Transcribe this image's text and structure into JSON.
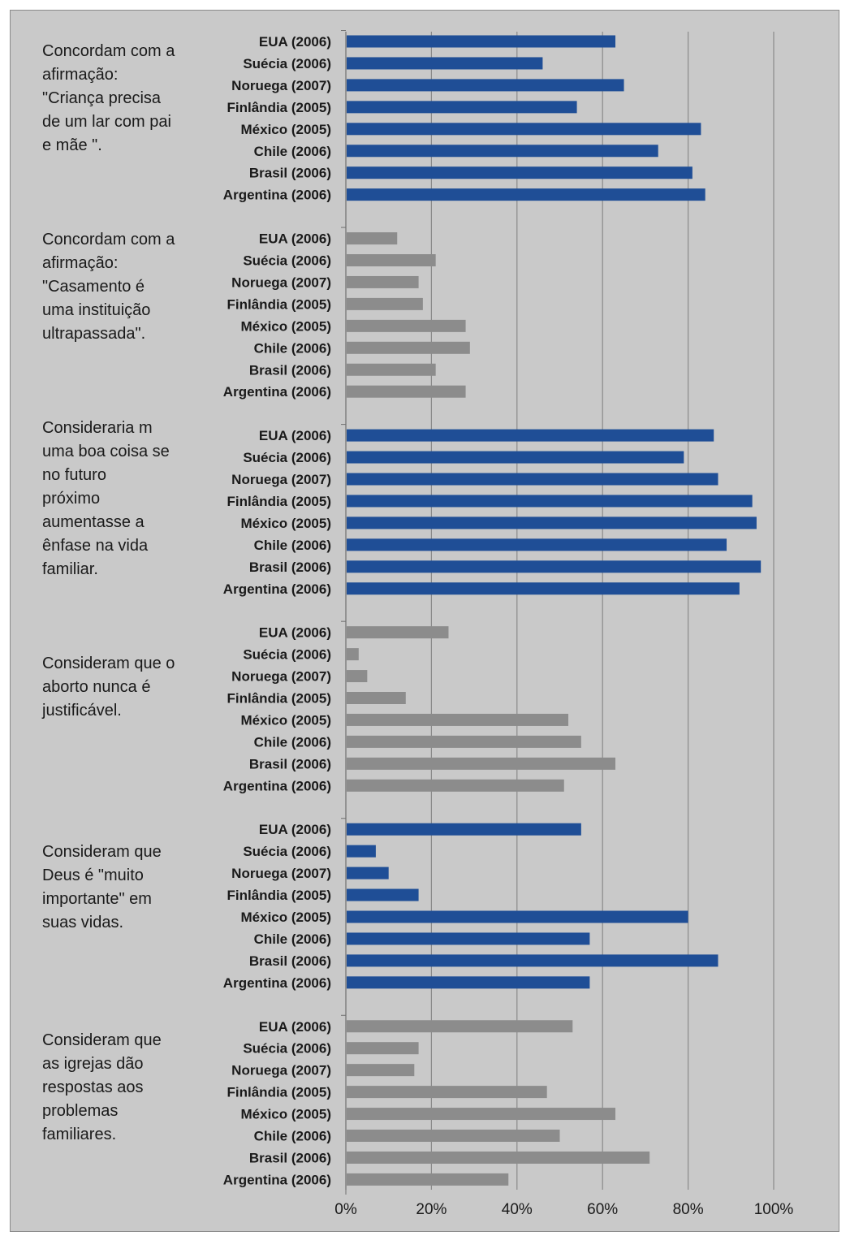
{
  "chart_data": {
    "type": "bar",
    "orientation": "horizontal",
    "categories": [
      "EUA (2006)",
      "Suécia (2006)",
      "Noruega (2007)",
      "Finlândia (2005)",
      "México (2005)",
      "Chile (2006)",
      "Brasil (2006)",
      "Argentina (2006)"
    ],
    "groups": [
      {
        "label": "Concordam com a\nafirmação:\n\"Criança precisa\nde um lar com pai\ne mãe \".",
        "color": "#1f4e96",
        "values": [
          63,
          46,
          65,
          54,
          83,
          73,
          81,
          84
        ]
      },
      {
        "label": "Concordam com a\nafirmação:\n\"Casamento é\numa instituição\nultrapassada\".",
        "color": "#8c8c8c",
        "values": [
          12,
          21,
          17,
          18,
          28,
          29,
          21,
          28
        ]
      },
      {
        "label": "Consideraria m\numa boa coisa se\nno futuro\npróximo\naumentasse a\nênfase na vida\nfamiliar.",
        "color": "#1f4e96",
        "values": [
          86,
          79,
          87,
          95,
          96,
          89,
          97,
          92
        ]
      },
      {
        "label": "Consideram que o\naborto nunca é\njustificável.",
        "color": "#8c8c8c",
        "values": [
          24,
          3,
          5,
          14,
          52,
          55,
          63,
          51
        ]
      },
      {
        "label": "Consideram que\nDeus é \"muito\nimportante\" em\nsuas vidas.",
        "color": "#1f4e96",
        "values": [
          55,
          7,
          10,
          17,
          80,
          57,
          87,
          57
        ]
      },
      {
        "label": "Consideram que\nas igrejas dão\nrespostas aos\nproblemas\nfamiliares.",
        "color": "#8c8c8c",
        "values": [
          53,
          17,
          16,
          47,
          63,
          50,
          71,
          38
        ]
      }
    ],
    "xlim": [
      0,
      100
    ],
    "x_ticks": [
      "0%",
      "20%",
      "40%",
      "60%",
      "80%",
      "100%"
    ],
    "grid": true,
    "xlabel": "",
    "ylabel": "",
    "title": ""
  }
}
